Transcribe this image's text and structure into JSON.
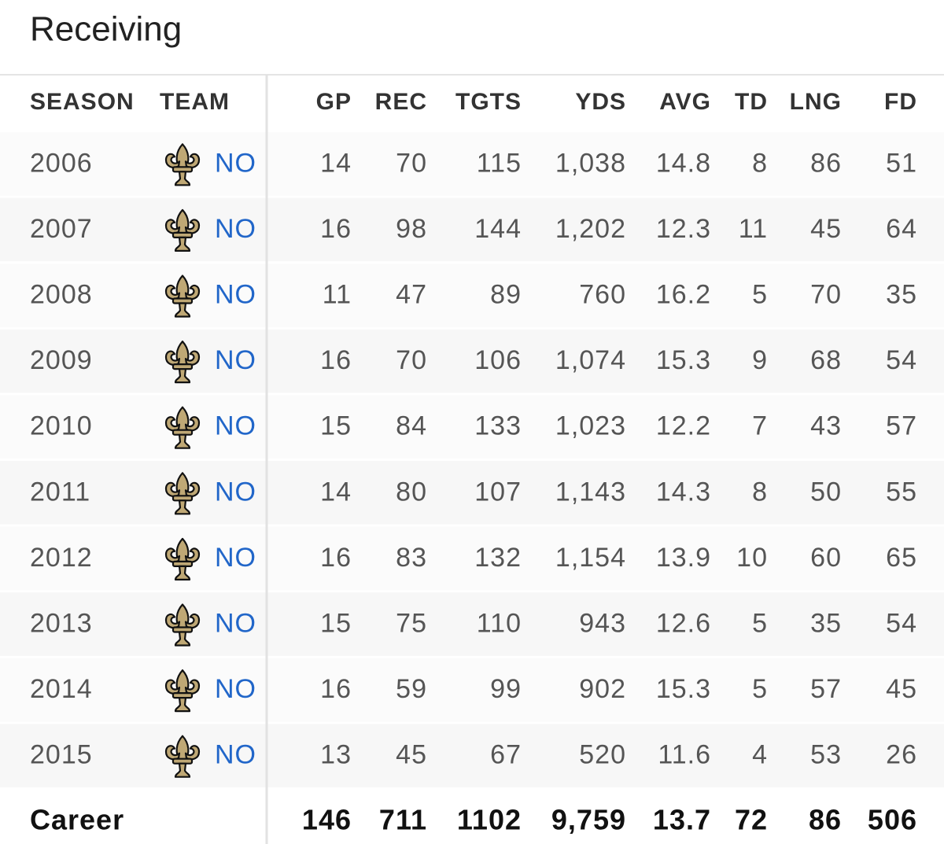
{
  "title": "Receiving",
  "table": {
    "headers": [
      "SEASON",
      "TEAM",
      "GP",
      "REC",
      "TGTS",
      "YDS",
      "AVG",
      "TD",
      "LNG",
      "FD"
    ],
    "rows": [
      [
        "2006",
        "NO",
        "14",
        "70",
        "115",
        "1,038",
        "14.8",
        "8",
        "86",
        "51"
      ],
      [
        "2007",
        "NO",
        "16",
        "98",
        "144",
        "1,202",
        "12.3",
        "11",
        "45",
        "64"
      ],
      [
        "2008",
        "NO",
        "11",
        "47",
        "89",
        "760",
        "16.2",
        "5",
        "70",
        "35"
      ],
      [
        "2009",
        "NO",
        "16",
        "70",
        "106",
        "1,074",
        "15.3",
        "9",
        "68",
        "54"
      ],
      [
        "2010",
        "NO",
        "15",
        "84",
        "133",
        "1,023",
        "12.2",
        "7",
        "43",
        "57"
      ],
      [
        "2011",
        "NO",
        "14",
        "80",
        "107",
        "1,143",
        "14.3",
        "8",
        "50",
        "55"
      ],
      [
        "2012",
        "NO",
        "16",
        "83",
        "132",
        "1,154",
        "13.9",
        "10",
        "60",
        "65"
      ],
      [
        "2013",
        "NO",
        "15",
        "75",
        "110",
        "943",
        "12.6",
        "5",
        "35",
        "54"
      ],
      [
        "2014",
        "NO",
        "16",
        "59",
        "99",
        "902",
        "15.3",
        "5",
        "57",
        "45"
      ],
      [
        "2015",
        "NO",
        "13",
        "45",
        "67",
        "520",
        "11.6",
        "4",
        "53",
        "26"
      ]
    ],
    "footer": [
      "Career",
      "146",
      "711",
      "1102",
      "9,759",
      "13.7",
      "72",
      "86",
      "506"
    ]
  }
}
